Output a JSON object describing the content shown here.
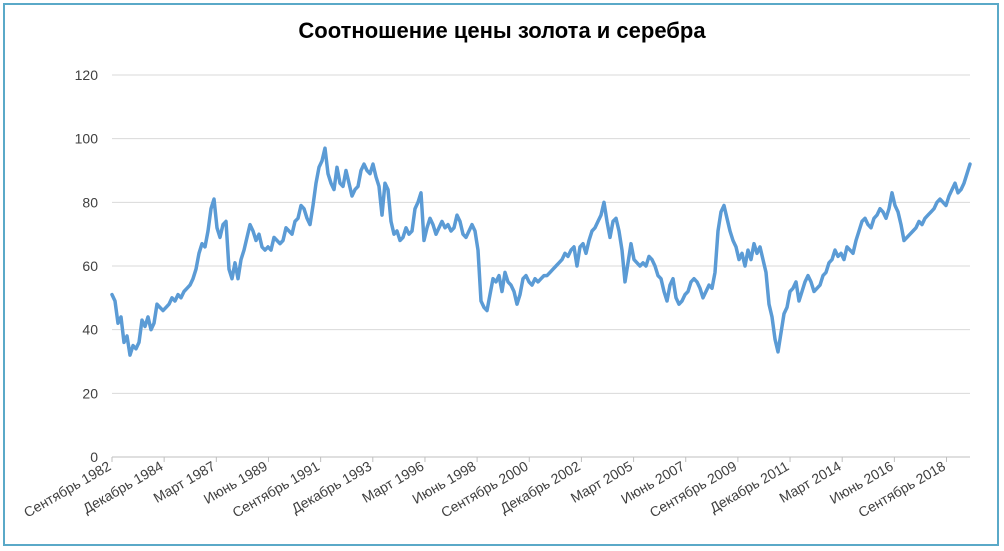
{
  "chart_data": {
    "type": "line",
    "title": "Соотношение цены золота и серебра",
    "xlabel": "",
    "ylabel": "",
    "ylim": [
      0,
      120
    ],
    "yticks": [
      0,
      20,
      40,
      60,
      80,
      100,
      120
    ],
    "grid": "horizontal",
    "line_color": "#5b9bd5",
    "x_tick_labels": [
      "Сентябрь 1982",
      "Декабрь 1984",
      "Март 1987",
      "Июнь 1989",
      "Сентябрь 1991",
      "Декабрь 1993",
      "Март 1996",
      "Июнь 1998",
      "Сентябрь 2000",
      "Декабрь 2002",
      "Март 2005",
      "Июнь 2007",
      "Сентябрь 2009",
      "Декабрь 2011",
      "Март 2014",
      "Июнь 2016",
      "Сентябрь 2018"
    ],
    "x_start": "1982-09",
    "x_end": "2019-09",
    "series": [
      {
        "values": [
          51,
          49,
          42,
          44,
          36,
          38,
          32,
          35,
          34,
          36,
          43,
          41,
          44,
          40,
          42,
          48,
          47,
          46,
          47,
          48,
          50,
          49,
          51,
          50,
          52,
          53,
          54,
          56,
          59,
          64,
          67,
          66,
          71,
          78,
          81,
          72,
          69,
          73,
          74,
          59,
          56,
          61,
          56,
          62,
          65,
          69,
          73,
          71,
          68,
          70,
          66,
          65,
          66,
          65,
          69,
          68,
          67,
          68,
          72,
          71,
          70,
          74,
          75,
          79,
          78,
          75,
          73,
          79,
          86,
          91,
          93,
          97,
          89,
          86,
          84,
          91,
          86,
          85,
          90,
          86,
          82,
          84,
          85,
          90,
          92,
          90,
          89,
          92,
          88,
          85,
          76,
          86,
          84,
          74,
          70,
          71,
          68,
          69,
          72,
          70,
          71,
          78,
          80,
          83,
          68,
          72,
          75,
          73,
          70,
          72,
          74,
          72,
          73,
          71,
          72,
          76,
          74,
          70,
          69,
          71,
          73,
          71,
          65,
          49,
          47,
          46,
          51,
          56,
          55,
          57,
          52,
          58,
          55,
          54,
          52,
          48,
          51,
          56,
          57,
          55,
          54,
          56,
          55,
          56,
          57,
          57,
          58,
          59,
          60,
          61,
          62,
          64,
          63,
          65,
          66,
          60,
          66,
          67,
          64,
          68,
          71,
          72,
          74,
          76,
          80,
          74,
          69,
          74,
          75,
          71,
          65,
          55,
          61,
          67,
          62,
          61,
          60,
          61,
          60,
          63,
          62,
          60,
          57,
          56,
          52,
          49,
          54,
          56,
          50,
          48,
          49,
          51,
          52,
          55,
          56,
          55,
          53,
          50,
          52,
          54,
          53,
          58,
          71,
          77,
          79,
          75,
          71,
          68,
          66,
          62,
          64,
          60,
          65,
          62,
          67,
          64,
          66,
          62,
          58,
          48,
          44,
          37,
          33,
          39,
          45,
          47,
          52,
          53,
          55,
          49,
          52,
          55,
          57,
          55,
          52,
          53,
          54,
          57,
          58,
          61,
          62,
          65,
          63,
          64,
          62,
          66,
          65,
          64,
          68,
          71,
          74,
          75,
          73,
          72,
          75,
          76,
          78,
          77,
          75,
          78,
          83,
          79,
          77,
          73,
          68,
          69,
          70,
          71,
          72,
          74,
          73,
          75,
          76,
          77,
          78,
          80,
          81,
          80,
          79,
          82,
          84,
          86,
          83,
          84,
          86,
          89,
          92
        ]
      }
    ]
  }
}
